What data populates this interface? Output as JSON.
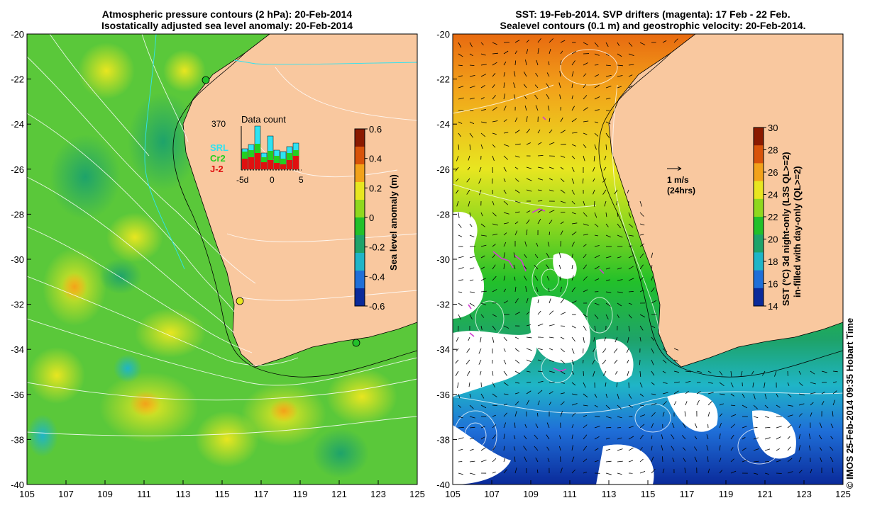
{
  "left_panel": {
    "title_line1": "Atmospheric pressure contours (2 hPa): 20-Feb-2014",
    "title_line2": "Isostatically adjusted sea level anomaly: 20-Feb-2014",
    "colorbar": {
      "label": "Sea level anomaly (m)",
      "ticks": [
        "0.6",
        "0.4",
        "0.2",
        "0",
        "-0.2",
        "-0.4",
        "-0.6"
      ],
      "colors": [
        "#8b1a00",
        "#d8530a",
        "#f2a21a",
        "#e8e620",
        "#8fd81e",
        "#22c02a",
        "#1ea36a",
        "#1fb5c7",
        "#1f6fd8",
        "#0a2a9a"
      ]
    },
    "data_count": {
      "title": "Data count",
      "max_label": "370",
      "legend": [
        {
          "name": "SRL",
          "color": "#2ee3f2"
        },
        {
          "name": "Cr2",
          "color": "#22d022"
        },
        {
          "name": "J-2",
          "color": "#e01010"
        }
      ],
      "x_ticks": [
        "-5d",
        "0",
        "5"
      ]
    },
    "x_ticks": [
      "105",
      "107",
      "109",
      "111",
      "113",
      "115",
      "117",
      "119",
      "121",
      "123",
      "125"
    ],
    "y_ticks": [
      "-20",
      "-22",
      "-24",
      "-26",
      "-28",
      "-30",
      "-32",
      "-34",
      "-36",
      "-38",
      "-40"
    ]
  },
  "right_panel": {
    "title_line1": "SST: 19-Feb-2014. SVP drifters (magenta): 17 Feb - 22 Feb.",
    "title_line2": "Sealevel contours (0.1 m) and geostrophic velocity: 20-Feb-2014.",
    "colorbar": {
      "label_line1": "SST (°C) 3d night-only (L3S QL>=2)",
      "label_line2": "in-filled with day-only (QL>=2)",
      "ticks": [
        "30",
        "28",
        "26",
        "24",
        "22",
        "20",
        "18",
        "16",
        "14"
      ],
      "colors": [
        "#8b1a00",
        "#d8530a",
        "#f2a21a",
        "#e8e620",
        "#8fd81e",
        "#22c02a",
        "#1ea36a",
        "#1fb5c7",
        "#1f6fd8",
        "#0a2a9a"
      ]
    },
    "velocity_key": {
      "label": "1 m/s",
      "sublabel": "(24hrs)"
    },
    "x_ticks": [
      "105",
      "107",
      "109",
      "111",
      "113",
      "115",
      "117",
      "119",
      "121",
      "123",
      "125"
    ],
    "y_ticks": [
      "-20",
      "-22",
      "-24",
      "-26",
      "-28",
      "-30",
      "-32",
      "-34",
      "-36",
      "-38",
      "-40"
    ]
  },
  "credit": "© IMOS 25-Feb-2014 09:35 Hobart Time",
  "colors": {
    "land": "#f9c89f",
    "drifters": "#d040d0"
  }
}
